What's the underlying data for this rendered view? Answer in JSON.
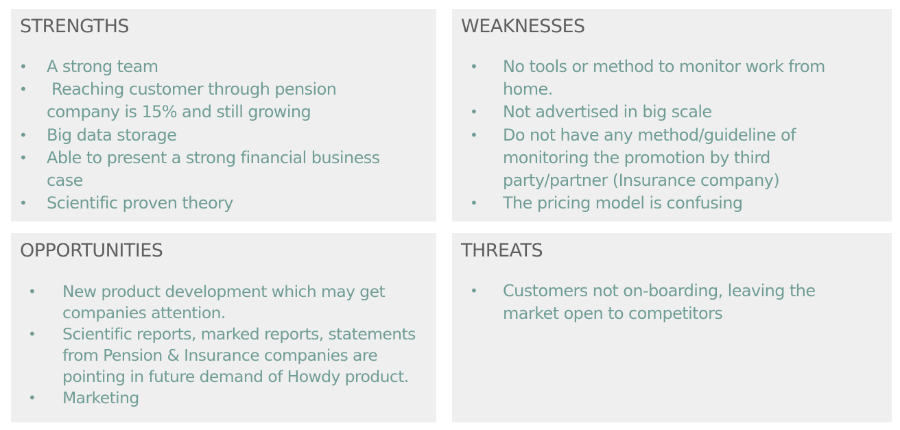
{
  "colors": {
    "box_background": "#efefef",
    "heading_text": "#5f5f5f",
    "item_text": "#6f9d95"
  },
  "bullet_glyph": "•",
  "strengths": {
    "title": "STRENGTHS",
    "items": [
      "A strong team",
      " Reaching customer through pension company is 15% and still growing",
      "Big data storage",
      "Able to present a strong financial business case",
      "Scientific proven theory"
    ]
  },
  "weaknesses": {
    "title": "WEAKNESSES",
    "items": [
      "No tools or method to monitor work from home.",
      "Not advertised in big scale",
      "Do not have any method/guideline of monitoring the promotion by third party/partner (Insurance company)",
      "The pricing model is confusing"
    ]
  },
  "opportunities": {
    "title": "OPPORTUNITIES",
    "items": [
      "New product development which may get companies attention.",
      "Scientific reports, marked reports, statements from Pension & Insurance companies are pointing in future demand of Howdy product.",
      "Marketing"
    ]
  },
  "threats": {
    "title": "THREATS",
    "items": [
      "Customers not on-boarding, leaving the market open to competitors"
    ]
  }
}
